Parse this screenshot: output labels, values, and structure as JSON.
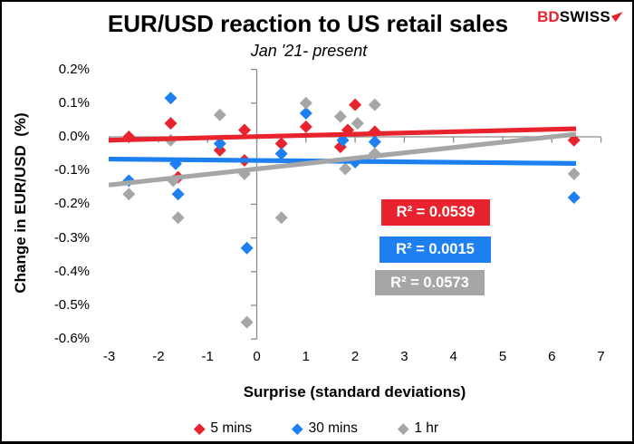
{
  "page": {
    "title": "EUR/USD reaction to US retail sales",
    "subtitle": "Jan '21- present"
  },
  "logo": {
    "text_bd": "BD",
    "text_swiss": "SWISS",
    "arrow_icon": "northeast-arrow-icon",
    "brand_red": "#e8232e"
  },
  "chart_data": {
    "type": "scatter",
    "title": "EUR/USD reaction to US retail sales",
    "subtitle": "Jan '21- present",
    "xlabel": "Surprise (standard deviations)",
    "ylabel": "Change in EUR/USD  (%)",
    "xlim": [
      -3,
      7
    ],
    "ylim": [
      -0.6,
      0.2
    ],
    "y_unit": "%",
    "grid": false,
    "legend_position": "bottom",
    "axis_color": "#8c8c8c",
    "x_ticks": [
      {
        "value": -3,
        "label": "-3"
      },
      {
        "value": -2,
        "label": "-2"
      },
      {
        "value": -1,
        "label": "-1"
      },
      {
        "value": 0,
        "label": "0"
      },
      {
        "value": 1,
        "label": "1"
      },
      {
        "value": 2,
        "label": "2"
      },
      {
        "value": 3,
        "label": "3"
      },
      {
        "value": 4,
        "label": "4"
      },
      {
        "value": 5,
        "label": "5"
      },
      {
        "value": 6,
        "label": "6"
      },
      {
        "value": 7,
        "label": "7"
      }
    ],
    "y_ticks": [
      {
        "value": 0.2,
        "label": "0.2%"
      },
      {
        "value": 0.1,
        "label": "0.1%"
      },
      {
        "value": 0.0,
        "label": "0.0%"
      },
      {
        "value": -0.1,
        "label": "-0.1%"
      },
      {
        "value": -0.2,
        "label": "-0.2%"
      },
      {
        "value": -0.3,
        "label": "-0.3%"
      },
      {
        "value": -0.4,
        "label": "-0.4%"
      },
      {
        "value": -0.5,
        "label": "-0.5%"
      },
      {
        "value": -0.6,
        "label": "-0.6%"
      }
    ],
    "series": [
      {
        "name": "5 mins",
        "color": "#e8232e",
        "marker": "diamond",
        "r2_text": "R² = 0.0539",
        "r2_value": 0.0539,
        "points": [
          [
            -2.6,
            0.0
          ],
          [
            -1.75,
            0.04
          ],
          [
            -1.6,
            -0.12
          ],
          [
            -0.75,
            -0.04
          ],
          [
            -0.25,
            0.02
          ],
          [
            -0.25,
            -0.07
          ],
          [
            0.5,
            -0.02
          ],
          [
            1.0,
            0.03
          ],
          [
            1.7,
            -0.03
          ],
          [
            1.85,
            0.02
          ],
          [
            2.0,
            0.095
          ],
          [
            2.4,
            0.015
          ],
          [
            6.45,
            -0.01
          ]
        ],
        "trendline": {
          "start": [
            -3.0,
            -0.01
          ],
          "end": [
            6.5,
            0.024
          ]
        }
      },
      {
        "name": "30 mins",
        "color": "#1e80f0",
        "marker": "diamond",
        "r2_text": "R² = 0.0015",
        "r2_value": 0.0015,
        "points": [
          [
            -2.6,
            -0.13
          ],
          [
            -1.75,
            0.115
          ],
          [
            -1.65,
            -0.08
          ],
          [
            -1.6,
            -0.17
          ],
          [
            -0.75,
            -0.02
          ],
          [
            -0.2,
            -0.33
          ],
          [
            0.5,
            -0.05
          ],
          [
            1.0,
            0.07
          ],
          [
            1.75,
            -0.01
          ],
          [
            2.0,
            -0.075
          ],
          [
            2.4,
            -0.015
          ],
          [
            6.45,
            -0.18
          ]
        ],
        "trendline": {
          "start": [
            -3.0,
            -0.066
          ],
          "end": [
            6.5,
            -0.079
          ]
        }
      },
      {
        "name": "1 hr",
        "color": "#a6a6a6",
        "marker": "diamond",
        "r2_text": "R² = 0.0573",
        "r2_value": 0.0573,
        "points": [
          [
            -2.6,
            -0.17
          ],
          [
            -1.75,
            -0.01
          ],
          [
            -1.7,
            -0.13
          ],
          [
            -1.6,
            -0.24
          ],
          [
            -0.75,
            0.065
          ],
          [
            -0.25,
            -0.11
          ],
          [
            -0.2,
            -0.55
          ],
          [
            0.5,
            -0.24
          ],
          [
            1.0,
            0.1
          ],
          [
            1.7,
            0.06
          ],
          [
            1.8,
            -0.095
          ],
          [
            2.05,
            0.04
          ],
          [
            2.4,
            0.095
          ],
          [
            2.4,
            -0.05
          ],
          [
            6.45,
            -0.11
          ]
        ],
        "trendline": {
          "start": [
            -3.0,
            -0.143
          ],
          "end": [
            6.5,
            0.008
          ]
        }
      }
    ]
  }
}
